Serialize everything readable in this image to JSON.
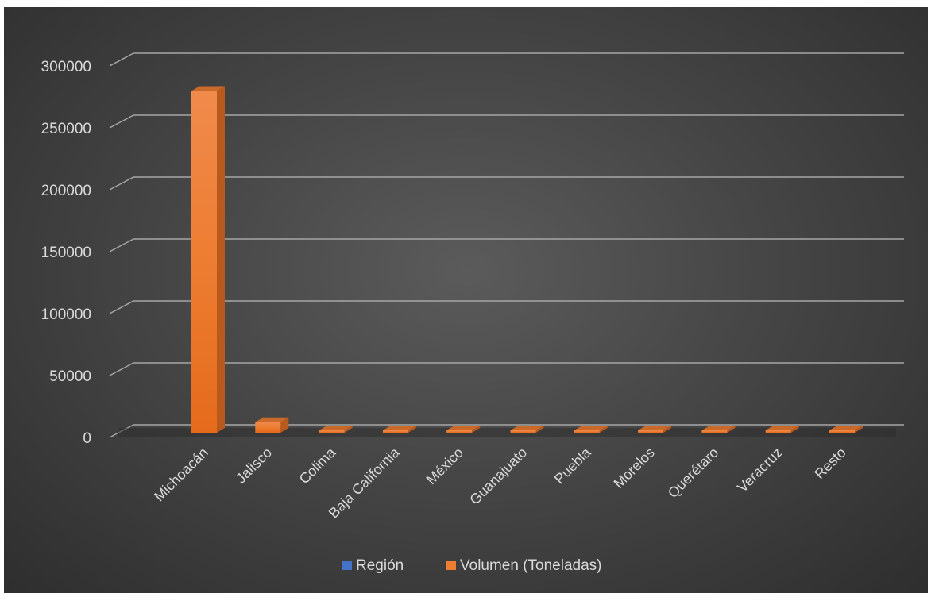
{
  "chart_data": {
    "type": "bar",
    "categories": [
      "Michoacán",
      "Jalisco",
      "Colima",
      "Baja California",
      "México",
      "Guanajuato",
      "Puebla",
      "Morelos",
      "Querétaro",
      "Veracruz",
      "Resto"
    ],
    "series": [
      {
        "name": "Región",
        "values": [
          0,
          0,
          0,
          0,
          0,
          0,
          0,
          0,
          0,
          0,
          0
        ],
        "color": "#4472c4"
      },
      {
        "name": "Volumen (Toneladas)",
        "values": [
          276000,
          8500,
          1800,
          700,
          600,
          500,
          450,
          400,
          350,
          300,
          250
        ],
        "color": "#ed7d31"
      }
    ],
    "yticks": [
      0,
      50000,
      100000,
      150000,
      200000,
      250000,
      300000
    ],
    "ylim": [
      0,
      300000
    ],
    "title": "",
    "xlabel": "",
    "ylabel": "",
    "grid": true,
    "legend_position": "bottom",
    "style": "3d-column",
    "background": "#464646",
    "gridline_color": "#a6a6a6",
    "text_color": "#d9d9d9"
  }
}
